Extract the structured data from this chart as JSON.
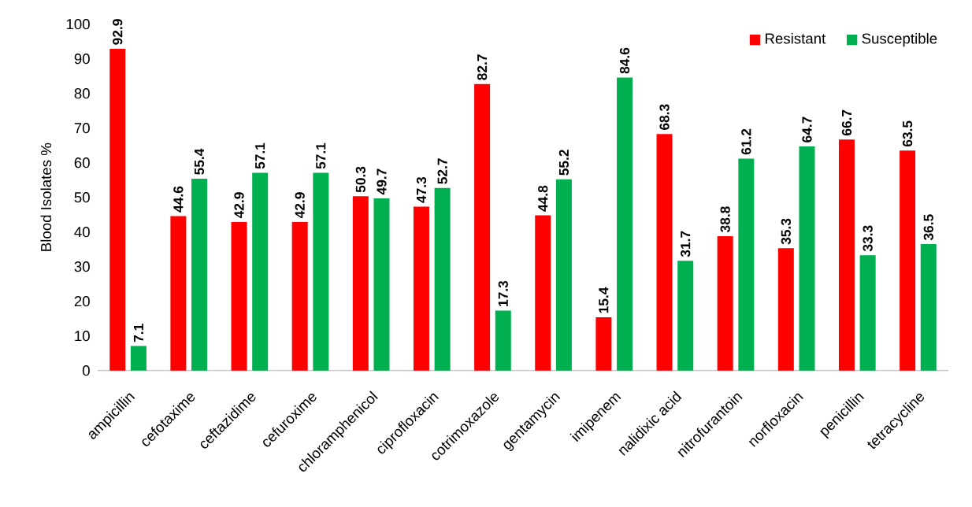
{
  "chart_data": {
    "type": "bar",
    "ylabel": "Blood Isolates %",
    "categories": [
      "ampicillin",
      "cefotaxime",
      "ceftazidime",
      "cefuroxime",
      "chloramphenicol",
      "ciprofloxacin",
      "cotrimoxazole",
      "gentamycin",
      "imipenem",
      "nalidixic acid",
      "nitrofurantoin",
      "norfloxacin",
      "penicillin",
      "tetracycline"
    ],
    "series": [
      {
        "name": "Resistant",
        "color": "#ff0000",
        "values": [
          92.9,
          44.6,
          42.9,
          42.9,
          50.3,
          47.3,
          82.7,
          44.8,
          15.4,
          68.3,
          38.8,
          35.3,
          66.7,
          63.5
        ]
      },
      {
        "name": "Susceptible",
        "color": "#00b050",
        "values": [
          7.1,
          55.4,
          57.1,
          57.1,
          49.7,
          52.7,
          17.3,
          55.2,
          84.6,
          31.7,
          61.2,
          64.7,
          33.3,
          36.5
        ]
      }
    ],
    "ylim": [
      0,
      100
    ],
    "yticks": [
      0,
      10,
      20,
      30,
      40,
      50,
      60,
      70,
      80,
      90,
      100
    ],
    "grid": false,
    "legend": "top right",
    "data_labels": true
  }
}
